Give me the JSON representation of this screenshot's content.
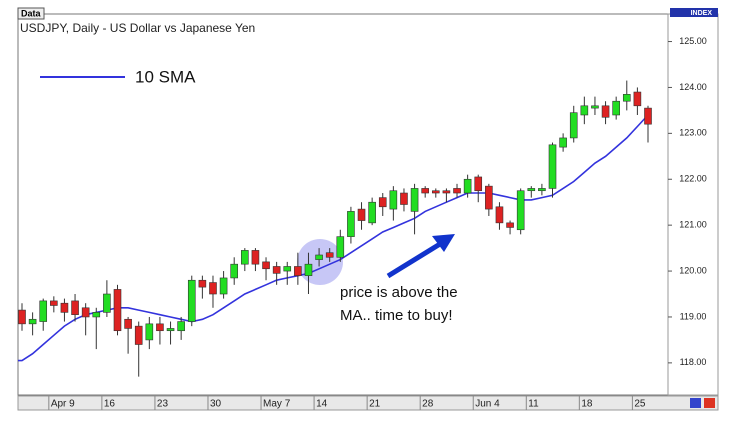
{
  "chart_data": {
    "type": "candlestick",
    "title": "USDJPY, Daily - US Dollar vs Japanese Yen",
    "tag": "Data",
    "axis_label": "INDEX",
    "annotation": [
      "price is above the",
      "MA.. time to buy!"
    ],
    "up_color": "#22dd22",
    "down_color": "#dd2222",
    "categories": [
      null,
      null,
      null,
      "Apr 9",
      null,
      null,
      null,
      null,
      "16",
      null,
      null,
      null,
      null,
      "23",
      null,
      null,
      null,
      null,
      "30",
      null,
      null,
      null,
      null,
      "May 7",
      null,
      null,
      null,
      null,
      "14",
      null,
      null,
      null,
      null,
      "21",
      null,
      null,
      null,
      null,
      "28",
      null,
      null,
      null,
      null,
      "Jun 4",
      null,
      null,
      null,
      null,
      "11",
      null,
      null,
      null,
      null,
      "18",
      null,
      null,
      null,
      null,
      "25",
      null
    ],
    "open": [
      119.15,
      118.85,
      118.9,
      119.35,
      119.3,
      119.35,
      119.2,
      119.0,
      119.1,
      119.6,
      118.95,
      118.8,
      118.5,
      118.85,
      118.7,
      118.7,
      118.9,
      119.8,
      119.75,
      119.5,
      119.85,
      120.15,
      120.45,
      120.2,
      120.1,
      120.0,
      120.1,
      119.9,
      120.25,
      120.4,
      120.3,
      120.75,
      121.35,
      121.05,
      121.6,
      121.35,
      121.7,
      121.3,
      121.8,
      121.75,
      121.75,
      121.8,
      121.7,
      122.05,
      121.85,
      121.4,
      121.05,
      120.9,
      121.75,
      121.75,
      121.8,
      122.7,
      122.9,
      123.4,
      123.55,
      123.6,
      123.4,
      123.7,
      123.9,
      123.55
    ],
    "high": [
      119.3,
      119.1,
      119.4,
      119.45,
      119.4,
      119.5,
      119.3,
      119.2,
      119.8,
      119.7,
      119.0,
      118.9,
      119.0,
      119.0,
      118.9,
      119.0,
      119.9,
      119.9,
      119.9,
      120.0,
      120.3,
      120.5,
      120.5,
      120.3,
      120.2,
      120.2,
      120.4,
      120.4,
      120.5,
      120.5,
      120.9,
      121.4,
      121.5,
      121.6,
      121.7,
      121.85,
      121.8,
      121.9,
      121.85,
      121.8,
      121.8,
      121.9,
      122.1,
      122.1,
      121.9,
      121.5,
      121.1,
      121.8,
      121.85,
      121.9,
      122.8,
      123.0,
      123.6,
      123.8,
      123.8,
      123.7,
      123.8,
      124.15,
      124.0,
      123.6
    ],
    "low": [
      118.7,
      118.6,
      118.7,
      119.1,
      118.9,
      118.9,
      118.6,
      118.3,
      119.0,
      118.6,
      118.2,
      117.7,
      118.3,
      118.4,
      118.4,
      118.5,
      118.8,
      119.4,
      119.2,
      119.4,
      119.7,
      120.0,
      120.0,
      119.8,
      119.7,
      119.7,
      119.7,
      119.5,
      120.1,
      120.2,
      120.2,
      120.6,
      120.9,
      121.0,
      121.2,
      121.1,
      121.3,
      120.8,
      121.6,
      121.6,
      121.5,
      121.6,
      121.6,
      121.5,
      121.2,
      120.9,
      120.8,
      120.8,
      121.6,
      121.65,
      121.6,
      122.6,
      122.8,
      123.2,
      123.4,
      123.2,
      123.3,
      123.5,
      123.4,
      122.8
    ],
    "close": [
      118.85,
      118.95,
      119.35,
      119.25,
      119.1,
      119.05,
      119.0,
      119.1,
      119.5,
      118.7,
      118.75,
      118.4,
      118.85,
      118.7,
      118.75,
      118.9,
      119.8,
      119.65,
      119.5,
      119.85,
      120.15,
      120.45,
      120.15,
      120.05,
      119.95,
      120.1,
      119.9,
      120.15,
      120.35,
      120.3,
      120.75,
      121.3,
      121.1,
      121.5,
      121.4,
      121.75,
      121.45,
      121.8,
      121.7,
      121.7,
      121.7,
      121.7,
      122.0,
      121.75,
      121.35,
      121.05,
      120.95,
      121.75,
      121.8,
      121.8,
      122.75,
      122.9,
      123.45,
      123.6,
      123.6,
      123.35,
      123.7,
      123.85,
      123.6,
      123.2
    ],
    "series": [
      {
        "name": "10 SMA",
        "color": "#3333dd",
        "values": [
          118.05,
          118.2,
          118.4,
          118.6,
          118.8,
          118.95,
          119.05,
          119.1,
          119.15,
          119.2,
          119.2,
          119.15,
          119.1,
          119.05,
          119.0,
          118.95,
          118.9,
          118.95,
          119.05,
          119.2,
          119.35,
          119.5,
          119.6,
          119.7,
          119.8,
          119.85,
          119.9,
          119.95,
          120.05,
          120.15,
          120.25,
          120.4,
          120.55,
          120.7,
          120.85,
          120.95,
          121.05,
          121.15,
          121.3,
          121.4,
          121.5,
          121.6,
          121.7,
          121.7,
          121.7,
          121.65,
          121.6,
          121.55,
          121.55,
          121.6,
          121.65,
          121.8,
          121.95,
          122.15,
          122.35,
          122.5,
          122.7,
          122.9,
          123.15,
          123.4
        ]
      }
    ],
    "ylim": [
      117.3,
      125.6
    ],
    "yticks": [
      {
        "value": 118,
        "label": "118.00"
      },
      {
        "value": 119,
        "label": "119.00"
      },
      {
        "value": 120,
        "label": "120.00"
      },
      {
        "value": 121,
        "label": "121.00"
      },
      {
        "value": 122,
        "label": "122.00"
      },
      {
        "value": 123,
        "label": "123.00"
      },
      {
        "value": 124,
        "label": "124.00"
      },
      {
        "value": 125,
        "label": "125.00"
      }
    ]
  }
}
